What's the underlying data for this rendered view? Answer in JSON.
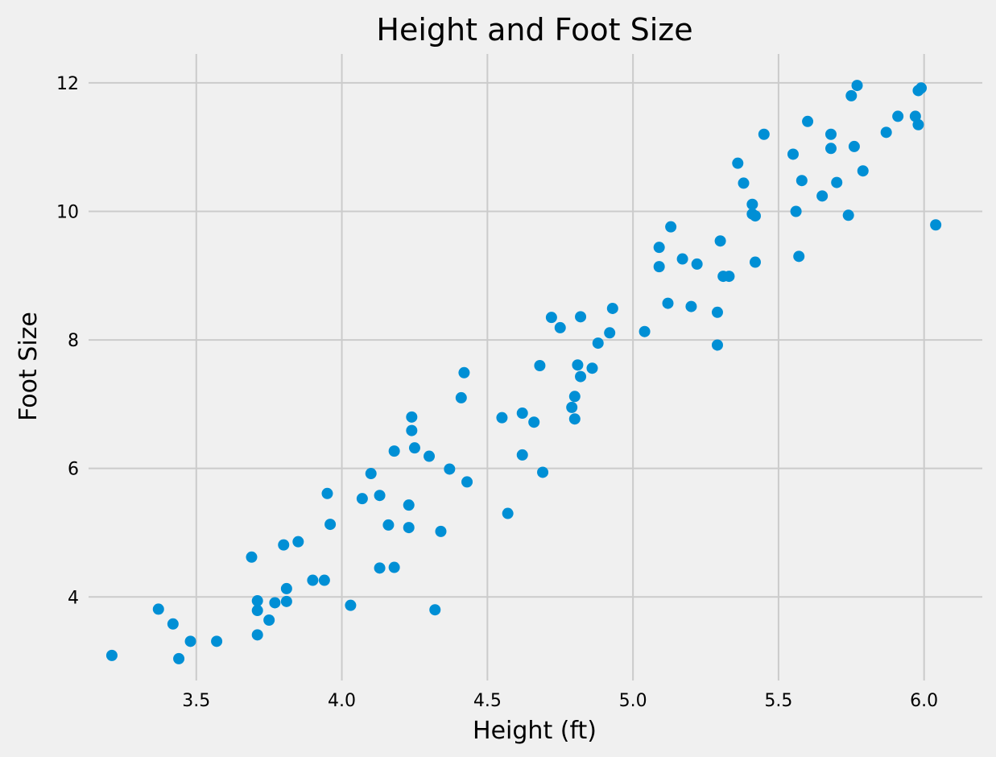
{
  "chart_data": {
    "type": "scatter",
    "title": "Height and Foot Size",
    "xlabel": "Height (ft)",
    "ylabel": "Foot Size",
    "xlim": [
      3.13,
      6.2
    ],
    "ylim": [
      2.7,
      12.45
    ],
    "xticks": [
      "3.5",
      "4.0",
      "4.5",
      "5.0",
      "5.5",
      "6.0"
    ],
    "yticks": [
      "4",
      "6",
      "8",
      "10",
      "12"
    ],
    "grid": true,
    "legend": "none",
    "series": [
      {
        "color": "#008fd5",
        "points": [
          [
            3.21,
            3.09
          ],
          [
            3.37,
            3.81
          ],
          [
            3.42,
            3.58
          ],
          [
            3.44,
            3.04
          ],
          [
            3.48,
            3.31
          ],
          [
            3.57,
            3.31
          ],
          [
            3.69,
            4.62
          ],
          [
            3.71,
            3.94
          ],
          [
            3.71,
            3.79
          ],
          [
            3.71,
            3.41
          ],
          [
            3.75,
            3.64
          ],
          [
            3.77,
            3.91
          ],
          [
            3.8,
            4.81
          ],
          [
            3.81,
            4.13
          ],
          [
            3.81,
            3.93
          ],
          [
            3.85,
            4.86
          ],
          [
            3.9,
            4.26
          ],
          [
            3.94,
            4.26
          ],
          [
            3.95,
            5.61
          ],
          [
            3.96,
            5.13
          ],
          [
            4.03,
            3.87
          ],
          [
            4.07,
            5.53
          ],
          [
            4.1,
            5.92
          ],
          [
            4.13,
            5.58
          ],
          [
            4.13,
            4.45
          ],
          [
            4.16,
            5.12
          ],
          [
            4.18,
            6.27
          ],
          [
            4.18,
            4.46
          ],
          [
            4.23,
            5.08
          ],
          [
            4.23,
            5.43
          ],
          [
            4.24,
            6.8
          ],
          [
            4.24,
            6.59
          ],
          [
            4.25,
            6.32
          ],
          [
            4.3,
            6.19
          ],
          [
            4.32,
            3.8
          ],
          [
            4.34,
            5.02
          ],
          [
            4.37,
            5.99
          ],
          [
            4.41,
            7.1
          ],
          [
            4.42,
            7.49
          ],
          [
            4.43,
            5.79
          ],
          [
            4.55,
            6.79
          ],
          [
            4.57,
            5.3
          ],
          [
            4.62,
            6.86
          ],
          [
            4.62,
            6.21
          ],
          [
            4.66,
            6.72
          ],
          [
            4.68,
            7.6
          ],
          [
            4.69,
            5.94
          ],
          [
            4.72,
            8.35
          ],
          [
            4.75,
            8.19
          ],
          [
            4.79,
            6.95
          ],
          [
            4.8,
            7.12
          ],
          [
            4.8,
            6.77
          ],
          [
            4.81,
            7.61
          ],
          [
            4.82,
            7.43
          ],
          [
            4.82,
            8.36
          ],
          [
            4.86,
            7.56
          ],
          [
            4.88,
            7.95
          ],
          [
            4.92,
            8.11
          ],
          [
            4.93,
            8.49
          ],
          [
            5.04,
            8.13
          ],
          [
            5.09,
            9.44
          ],
          [
            5.09,
            9.14
          ],
          [
            5.12,
            8.57
          ],
          [
            5.13,
            9.76
          ],
          [
            5.17,
            9.26
          ],
          [
            5.2,
            8.52
          ],
          [
            5.22,
            9.18
          ],
          [
            5.29,
            7.92
          ],
          [
            5.29,
            8.43
          ],
          [
            5.3,
            9.54
          ],
          [
            5.31,
            8.99
          ],
          [
            5.33,
            8.99
          ],
          [
            5.36,
            10.75
          ],
          [
            5.38,
            10.44
          ],
          [
            5.41,
            10.11
          ],
          [
            5.41,
            9.96
          ],
          [
            5.42,
            9.93
          ],
          [
            5.42,
            9.21
          ],
          [
            5.45,
            11.2
          ],
          [
            5.55,
            10.89
          ],
          [
            5.56,
            10.0
          ],
          [
            5.57,
            9.3
          ],
          [
            5.58,
            10.48
          ],
          [
            5.6,
            11.4
          ],
          [
            5.65,
            10.24
          ],
          [
            5.68,
            11.2
          ],
          [
            5.68,
            10.98
          ],
          [
            5.7,
            10.45
          ],
          [
            5.74,
            9.94
          ],
          [
            5.75,
            11.8
          ],
          [
            5.76,
            11.01
          ],
          [
            5.77,
            11.96
          ],
          [
            5.79,
            10.63
          ],
          [
            5.87,
            11.23
          ],
          [
            5.91,
            11.48
          ],
          [
            5.97,
            11.48
          ],
          [
            5.98,
            11.35
          ],
          [
            5.98,
            11.88
          ],
          [
            5.99,
            11.92
          ],
          [
            6.04,
            9.79
          ]
        ]
      }
    ]
  }
}
